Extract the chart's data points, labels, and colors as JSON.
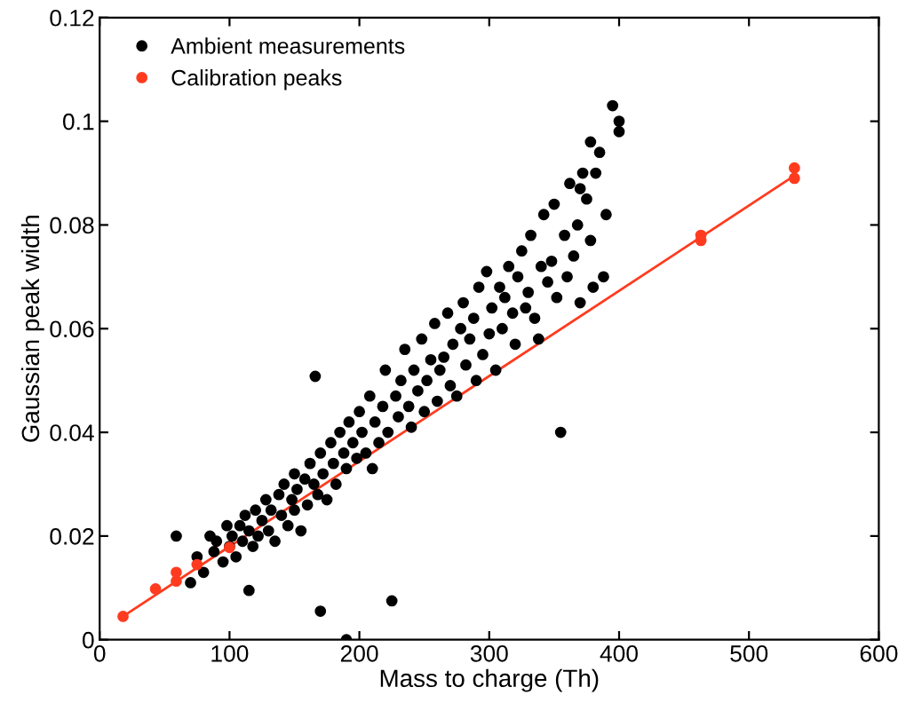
{
  "chart_data": {
    "type": "scatter",
    "xlabel": "Mass to charge (Th)",
    "ylabel": "Gaussian peak width",
    "xlim": [
      0,
      600
    ],
    "ylim": [
      0,
      0.12
    ],
    "xticks": [
      0,
      100,
      200,
      300,
      400,
      500,
      600
    ],
    "yticks": [
      0,
      0.02,
      0.04,
      0.06,
      0.08,
      0.1,
      0.12
    ],
    "grid": false,
    "legend": "top left",
    "marker": "circle",
    "series": [
      {
        "name": "Ambient measurements",
        "color": "#000000",
        "x": [
          59,
          70,
          75,
          80,
          85,
          88,
          90,
          95,
          98,
          100,
          102,
          105,
          108,
          110,
          112,
          115,
          115,
          118,
          120,
          122,
          125,
          128,
          130,
          132,
          135,
          138,
          140,
          142,
          145,
          148,
          150,
          150,
          152,
          155,
          158,
          160,
          162,
          165,
          166,
          168,
          170,
          170,
          172,
          175,
          178,
          180,
          182,
          185,
          188,
          190,
          190,
          192,
          195,
          198,
          200,
          202,
          205,
          208,
          210,
          212,
          215,
          218,
          220,
          222,
          225,
          228,
          230,
          232,
          235,
          238,
          240,
          242,
          245,
          248,
          250,
          252,
          255,
          258,
          260,
          262,
          265,
          268,
          270,
          272,
          275,
          278,
          280,
          282,
          285,
          288,
          290,
          292,
          295,
          298,
          300,
          302,
          305,
          308,
          310,
          312,
          315,
          318,
          320,
          322,
          325,
          328,
          330,
          332,
          335,
          338,
          340,
          342,
          345,
          348,
          350,
          352,
          355,
          358,
          360,
          362,
          365,
          368,
          370,
          372,
          375,
          378,
          380,
          382,
          385,
          390,
          395,
          400,
          370,
          378,
          388,
          400
        ],
        "values": [
          0.02,
          0.011,
          0.016,
          0.013,
          0.02,
          0.017,
          0.019,
          0.015,
          0.022,
          0.018,
          0.02,
          0.016,
          0.022,
          0.019,
          0.024,
          0.0095,
          0.021,
          0.018,
          0.025,
          0.02,
          0.023,
          0.027,
          0.021,
          0.025,
          0.019,
          0.028,
          0.024,
          0.03,
          0.022,
          0.027,
          0.032,
          0.025,
          0.029,
          0.021,
          0.031,
          0.026,
          0.034,
          0.03,
          0.0508,
          0.028,
          0.0055,
          0.036,
          0.032,
          0.027,
          0.038,
          0.034,
          0.03,
          0.04,
          0.036,
          0.0,
          0.033,
          0.042,
          0.038,
          0.035,
          0.044,
          0.04,
          0.036,
          0.047,
          0.033,
          0.042,
          0.038,
          0.045,
          0.052,
          0.04,
          0.0075,
          0.047,
          0.043,
          0.05,
          0.056,
          0.045,
          0.041,
          0.052,
          0.048,
          0.058,
          0.044,
          0.05,
          0.054,
          0.061,
          0.046,
          0.052,
          0.0545,
          0.063,
          0.049,
          0.057,
          0.047,
          0.06,
          0.065,
          0.053,
          0.058,
          0.062,
          0.05,
          0.068,
          0.055,
          0.071,
          0.059,
          0.064,
          0.052,
          0.068,
          0.06,
          0.066,
          0.072,
          0.063,
          0.057,
          0.07,
          0.075,
          0.064,
          0.067,
          0.078,
          0.062,
          0.058,
          0.072,
          0.082,
          0.069,
          0.073,
          0.084,
          0.066,
          0.04,
          0.078,
          0.07,
          0.088,
          0.074,
          0.08,
          0.065,
          0.09,
          0.085,
          0.077,
          0.068,
          0.09,
          0.094,
          0.082,
          0.103,
          0.098,
          0.087,
          0.096,
          0.07,
          0.1
        ]
      },
      {
        "name": "Calibration peaks",
        "color": "#ff3b1f",
        "x": [
          18,
          43,
          59,
          59,
          75,
          100,
          463,
          463,
          535,
          535
        ],
        "values": [
          0.0045,
          0.0098,
          0.0113,
          0.013,
          0.0145,
          0.0178,
          0.077,
          0.078,
          0.089,
          0.091
        ]
      },
      {
        "color": "#ff3b1f",
        "type": "line",
        "marker": "none",
        "x": [
          18,
          535
        ],
        "values": [
          0.0045,
          0.0895
        ]
      }
    ]
  }
}
